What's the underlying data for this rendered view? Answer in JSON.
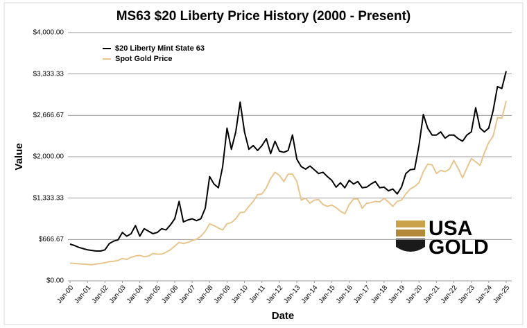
{
  "chart_data": {
    "type": "line",
    "title": "MS63 $20 Liberty Price History (2000 - Present)",
    "x_label": "Date",
    "y_label": "Value",
    "logo_text": [
      "USA",
      "GOLD"
    ],
    "x": [
      "2000-01",
      "2000-04",
      "2000-07",
      "2000-10",
      "2001-01",
      "2001-04",
      "2001-07",
      "2001-10",
      "2002-01",
      "2002-04",
      "2002-07",
      "2002-10",
      "2003-01",
      "2003-04",
      "2003-07",
      "2003-10",
      "2004-01",
      "2004-04",
      "2004-07",
      "2004-10",
      "2005-01",
      "2005-04",
      "2005-07",
      "2005-10",
      "2006-01",
      "2006-04",
      "2006-07",
      "2006-10",
      "2007-01",
      "2007-04",
      "2007-07",
      "2007-10",
      "2008-01",
      "2008-04",
      "2008-07",
      "2008-10",
      "2009-01",
      "2009-04",
      "2009-07",
      "2009-10",
      "2010-01",
      "2010-04",
      "2010-07",
      "2010-10",
      "2011-01",
      "2011-04",
      "2011-07",
      "2011-10",
      "2012-01",
      "2012-04",
      "2012-07",
      "2012-10",
      "2013-01",
      "2013-04",
      "2013-07",
      "2013-10",
      "2014-01",
      "2014-04",
      "2014-07",
      "2014-10",
      "2015-01",
      "2015-04",
      "2015-07",
      "2015-10",
      "2016-01",
      "2016-04",
      "2016-07",
      "2016-10",
      "2017-01",
      "2017-04",
      "2017-07",
      "2017-10",
      "2018-01",
      "2018-04",
      "2018-07",
      "2018-10",
      "2019-01",
      "2019-04",
      "2019-07",
      "2019-10",
      "2020-01",
      "2020-04",
      "2020-07",
      "2020-10",
      "2021-01",
      "2021-04",
      "2021-07",
      "2021-10",
      "2022-01",
      "2022-04",
      "2022-07",
      "2022-10",
      "2023-01",
      "2023-04",
      "2023-07",
      "2023-10",
      "2024-01",
      "2024-04",
      "2024-07",
      "2024-10",
      "2025-01"
    ],
    "series": [
      {
        "name": "$20 Liberty Mint State 63",
        "color": "#000000",
        "values": [
          592,
          570,
          540,
          520,
          500,
          490,
          480,
          480,
          500,
          600,
          640,
          660,
          780,
          720,
          760,
          890,
          720,
          840,
          800,
          760,
          780,
          840,
          820,
          900,
          1000,
          1280,
          950,
          980,
          1000,
          970,
          1000,
          1170,
          1680,
          1560,
          1500,
          1840,
          2460,
          2120,
          2400,
          2880,
          2400,
          2120,
          2180,
          2100,
          2180,
          2290,
          2050,
          2250,
          2090,
          2070,
          2100,
          2350,
          1960,
          1840,
          1800,
          1850,
          1790,
          1730,
          1750,
          1680,
          1620,
          1510,
          1580,
          1500,
          1620,
          1560,
          1600,
          1500,
          1510,
          1560,
          1600,
          1500,
          1510,
          1450,
          1480,
          1400,
          1510,
          1730,
          1790,
          1800,
          2180,
          2680,
          2460,
          2350,
          2350,
          2400,
          2300,
          2350,
          2350,
          2290,
          2250,
          2350,
          2400,
          2790,
          2460,
          2400,
          2460,
          2740,
          3130,
          3100,
          3380
        ]
      },
      {
        "name": "Spot Gold Price",
        "color": "#e8c58e",
        "values": [
          285,
          280,
          275,
          270,
          265,
          260,
          270,
          280,
          290,
          310,
          315,
          330,
          360,
          345,
          380,
          400,
          410,
          390,
          400,
          440,
          430,
          430,
          460,
          500,
          560,
          620,
          600,
          620,
          650,
          670,
          720,
          800,
          920,
          890,
          850,
          820,
          920,
          940,
          1000,
          1100,
          1110,
          1200,
          1280,
          1390,
          1400,
          1500,
          1650,
          1750,
          1700,
          1600,
          1720,
          1720,
          1600,
          1300,
          1330,
          1250,
          1300,
          1310,
          1230,
          1200,
          1220,
          1180,
          1120,
          1080,
          1230,
          1320,
          1320,
          1170,
          1250,
          1260,
          1280,
          1270,
          1330,
          1270,
          1200,
          1280,
          1300,
          1400,
          1480,
          1520,
          1580,
          1760,
          1880,
          1870,
          1730,
          1780,
          1760,
          1800,
          1940,
          1810,
          1660,
          1820,
          1970,
          1920,
          1860,
          2060,
          2230,
          2330,
          2630,
          2620,
          2900
        ]
      }
    ],
    "ylim": [
      0,
      4000
    ],
    "yticks": [
      {
        "value": 0,
        "label": "$0.00"
      },
      {
        "value": 666.67,
        "label": "$666.67"
      },
      {
        "value": 1333.33,
        "label": "$1,333.33"
      },
      {
        "value": 2000,
        "label": "$2,000.00"
      },
      {
        "value": 2666.67,
        "label": "$2,666.67"
      },
      {
        "value": 3333.33,
        "label": "$3,333.33"
      },
      {
        "value": 4000,
        "label": "$4,000.00"
      }
    ],
    "xlim": [
      "2000-01",
      "2025-01"
    ],
    "xticks": [
      {
        "value": "2000-01",
        "label": "Jan-00"
      },
      {
        "value": "2001-01",
        "label": "Jan-01"
      },
      {
        "value": "2002-01",
        "label": "Jan-02"
      },
      {
        "value": "2003-01",
        "label": "Jan-03"
      },
      {
        "value": "2004-01",
        "label": "Jan-04"
      },
      {
        "value": "2005-01",
        "label": "Jan-05"
      },
      {
        "value": "2006-01",
        "label": "Jan-06"
      },
      {
        "value": "2007-01",
        "label": "Jan-07"
      },
      {
        "value": "2008-01",
        "label": "Jan-08"
      },
      {
        "value": "2009-01",
        "label": "Jan-09"
      },
      {
        "value": "2010-01",
        "label": "Jan-10"
      },
      {
        "value": "2011-01",
        "label": "Jan-11"
      },
      {
        "value": "2012-01",
        "label": "Jan-12"
      },
      {
        "value": "2013-01",
        "label": "Jan-13"
      },
      {
        "value": "2014-01",
        "label": "Jan-14"
      },
      {
        "value": "2015-01",
        "label": "Jan-15"
      },
      {
        "value": "2016-01",
        "label": "Jan-16"
      },
      {
        "value": "2017-01",
        "label": "Jan-17"
      },
      {
        "value": "2018-01",
        "label": "Jan-18"
      },
      {
        "value": "2019-01",
        "label": "Jan-19"
      },
      {
        "value": "2020-01",
        "label": "Jan-20"
      },
      {
        "value": "2021-01",
        "label": "Jan-21"
      },
      {
        "value": "2022-01",
        "label": "Jan-22"
      },
      {
        "value": "2023-01",
        "label": "Jan-23"
      },
      {
        "value": "2024-01",
        "label": "Jan-24"
      },
      {
        "value": "2025-01",
        "label": "Jan-25"
      }
    ],
    "grid": true,
    "legend": "upper left"
  }
}
